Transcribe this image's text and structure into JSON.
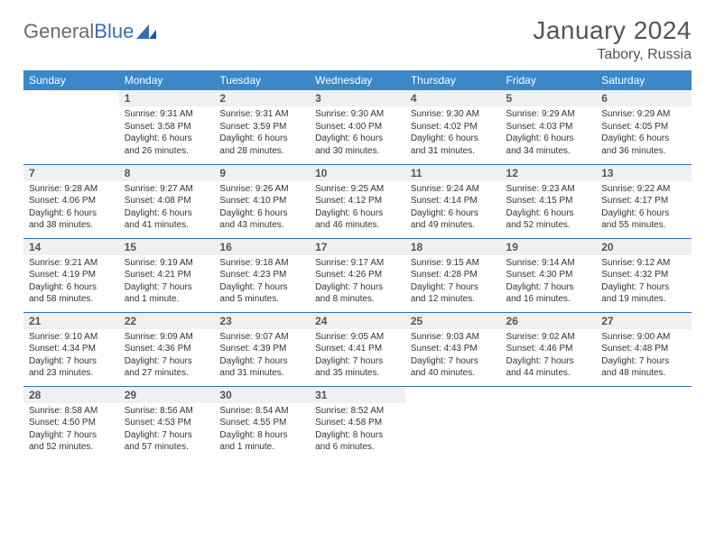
{
  "brand": {
    "part1": "General",
    "part2": "Blue"
  },
  "colors": {
    "header_bg": "#3b87c8",
    "border": "#2f71b8",
    "daynum_bg": "#eef0f1",
    "text": "#333333",
    "title": "#555555"
  },
  "title": "January 2024",
  "location": "Tabory, Russia",
  "weekdays": [
    "Sunday",
    "Monday",
    "Tuesday",
    "Wednesday",
    "Thursday",
    "Friday",
    "Saturday"
  ],
  "weeks": [
    [
      null,
      {
        "n": "1",
        "sr": "Sunrise: 9:31 AM",
        "ss": "Sunset: 3:58 PM",
        "d1": "Daylight: 6 hours",
        "d2": "and 26 minutes."
      },
      {
        "n": "2",
        "sr": "Sunrise: 9:31 AM",
        "ss": "Sunset: 3:59 PM",
        "d1": "Daylight: 6 hours",
        "d2": "and 28 minutes."
      },
      {
        "n": "3",
        "sr": "Sunrise: 9:30 AM",
        "ss": "Sunset: 4:00 PM",
        "d1": "Daylight: 6 hours",
        "d2": "and 30 minutes."
      },
      {
        "n": "4",
        "sr": "Sunrise: 9:30 AM",
        "ss": "Sunset: 4:02 PM",
        "d1": "Daylight: 6 hours",
        "d2": "and 31 minutes."
      },
      {
        "n": "5",
        "sr": "Sunrise: 9:29 AM",
        "ss": "Sunset: 4:03 PM",
        "d1": "Daylight: 6 hours",
        "d2": "and 34 minutes."
      },
      {
        "n": "6",
        "sr": "Sunrise: 9:29 AM",
        "ss": "Sunset: 4:05 PM",
        "d1": "Daylight: 6 hours",
        "d2": "and 36 minutes."
      }
    ],
    [
      {
        "n": "7",
        "sr": "Sunrise: 9:28 AM",
        "ss": "Sunset: 4:06 PM",
        "d1": "Daylight: 6 hours",
        "d2": "and 38 minutes."
      },
      {
        "n": "8",
        "sr": "Sunrise: 9:27 AM",
        "ss": "Sunset: 4:08 PM",
        "d1": "Daylight: 6 hours",
        "d2": "and 41 minutes."
      },
      {
        "n": "9",
        "sr": "Sunrise: 9:26 AM",
        "ss": "Sunset: 4:10 PM",
        "d1": "Daylight: 6 hours",
        "d2": "and 43 minutes."
      },
      {
        "n": "10",
        "sr": "Sunrise: 9:25 AM",
        "ss": "Sunset: 4:12 PM",
        "d1": "Daylight: 6 hours",
        "d2": "and 46 minutes."
      },
      {
        "n": "11",
        "sr": "Sunrise: 9:24 AM",
        "ss": "Sunset: 4:14 PM",
        "d1": "Daylight: 6 hours",
        "d2": "and 49 minutes."
      },
      {
        "n": "12",
        "sr": "Sunrise: 9:23 AM",
        "ss": "Sunset: 4:15 PM",
        "d1": "Daylight: 6 hours",
        "d2": "and 52 minutes."
      },
      {
        "n": "13",
        "sr": "Sunrise: 9:22 AM",
        "ss": "Sunset: 4:17 PM",
        "d1": "Daylight: 6 hours",
        "d2": "and 55 minutes."
      }
    ],
    [
      {
        "n": "14",
        "sr": "Sunrise: 9:21 AM",
        "ss": "Sunset: 4:19 PM",
        "d1": "Daylight: 6 hours",
        "d2": "and 58 minutes."
      },
      {
        "n": "15",
        "sr": "Sunrise: 9:19 AM",
        "ss": "Sunset: 4:21 PM",
        "d1": "Daylight: 7 hours",
        "d2": "and 1 minute."
      },
      {
        "n": "16",
        "sr": "Sunrise: 9:18 AM",
        "ss": "Sunset: 4:23 PM",
        "d1": "Daylight: 7 hours",
        "d2": "and 5 minutes."
      },
      {
        "n": "17",
        "sr": "Sunrise: 9:17 AM",
        "ss": "Sunset: 4:26 PM",
        "d1": "Daylight: 7 hours",
        "d2": "and 8 minutes."
      },
      {
        "n": "18",
        "sr": "Sunrise: 9:15 AM",
        "ss": "Sunset: 4:28 PM",
        "d1": "Daylight: 7 hours",
        "d2": "and 12 minutes."
      },
      {
        "n": "19",
        "sr": "Sunrise: 9:14 AM",
        "ss": "Sunset: 4:30 PM",
        "d1": "Daylight: 7 hours",
        "d2": "and 16 minutes."
      },
      {
        "n": "20",
        "sr": "Sunrise: 9:12 AM",
        "ss": "Sunset: 4:32 PM",
        "d1": "Daylight: 7 hours",
        "d2": "and 19 minutes."
      }
    ],
    [
      {
        "n": "21",
        "sr": "Sunrise: 9:10 AM",
        "ss": "Sunset: 4:34 PM",
        "d1": "Daylight: 7 hours",
        "d2": "and 23 minutes."
      },
      {
        "n": "22",
        "sr": "Sunrise: 9:09 AM",
        "ss": "Sunset: 4:36 PM",
        "d1": "Daylight: 7 hours",
        "d2": "and 27 minutes."
      },
      {
        "n": "23",
        "sr": "Sunrise: 9:07 AM",
        "ss": "Sunset: 4:39 PM",
        "d1": "Daylight: 7 hours",
        "d2": "and 31 minutes."
      },
      {
        "n": "24",
        "sr": "Sunrise: 9:05 AM",
        "ss": "Sunset: 4:41 PM",
        "d1": "Daylight: 7 hours",
        "d2": "and 35 minutes."
      },
      {
        "n": "25",
        "sr": "Sunrise: 9:03 AM",
        "ss": "Sunset: 4:43 PM",
        "d1": "Daylight: 7 hours",
        "d2": "and 40 minutes."
      },
      {
        "n": "26",
        "sr": "Sunrise: 9:02 AM",
        "ss": "Sunset: 4:46 PM",
        "d1": "Daylight: 7 hours",
        "d2": "and 44 minutes."
      },
      {
        "n": "27",
        "sr": "Sunrise: 9:00 AM",
        "ss": "Sunset: 4:48 PM",
        "d1": "Daylight: 7 hours",
        "d2": "and 48 minutes."
      }
    ],
    [
      {
        "n": "28",
        "sr": "Sunrise: 8:58 AM",
        "ss": "Sunset: 4:50 PM",
        "d1": "Daylight: 7 hours",
        "d2": "and 52 minutes."
      },
      {
        "n": "29",
        "sr": "Sunrise: 8:56 AM",
        "ss": "Sunset: 4:53 PM",
        "d1": "Daylight: 7 hours",
        "d2": "and 57 minutes."
      },
      {
        "n": "30",
        "sr": "Sunrise: 8:54 AM",
        "ss": "Sunset: 4:55 PM",
        "d1": "Daylight: 8 hours",
        "d2": "and 1 minute."
      },
      {
        "n": "31",
        "sr": "Sunrise: 8:52 AM",
        "ss": "Sunset: 4:58 PM",
        "d1": "Daylight: 8 hours",
        "d2": "and 6 minutes."
      },
      null,
      null,
      null
    ]
  ]
}
